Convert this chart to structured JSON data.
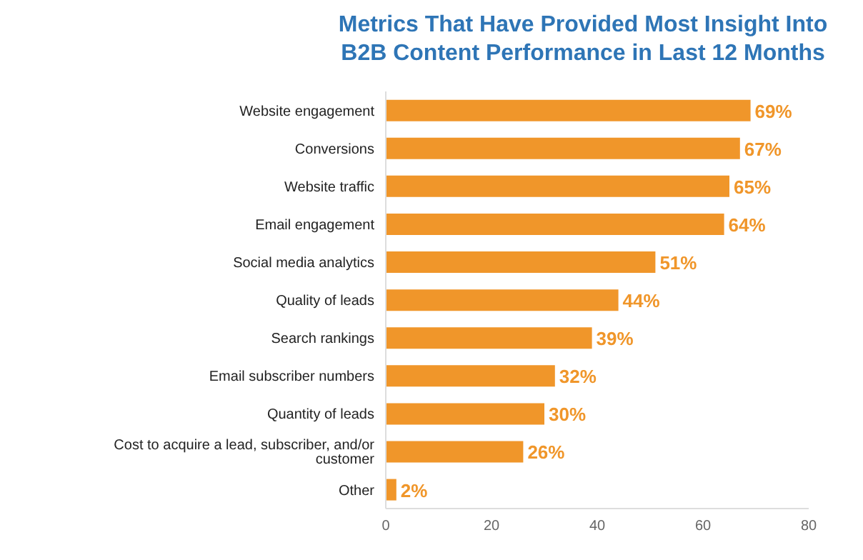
{
  "chart_data": {
    "type": "bar",
    "orientation": "horizontal",
    "title": "Metrics That Have Provided Most Insight Into B2B Content Performance in Last 12 Months",
    "categories": [
      "Website engagement",
      "Conversions",
      "Website traffic",
      "Email engagement",
      "Social media analytics",
      "Quality of leads",
      "Search rankings",
      "Email subscriber numbers",
      "Quantity of leads",
      "Cost to acquire a lead, subscriber, and/or customer",
      "Other"
    ],
    "values": [
      69,
      67,
      65,
      64,
      51,
      44,
      39,
      32,
      30,
      26,
      2
    ],
    "value_labels": [
      "69%",
      "67%",
      "65%",
      "64%",
      "51%",
      "44%",
      "39%",
      "32%",
      "30%",
      "26%",
      "2%"
    ],
    "color": "#f0962a",
    "xlim": [
      0,
      80
    ],
    "xticks": [
      0,
      20,
      40,
      60,
      80
    ]
  }
}
